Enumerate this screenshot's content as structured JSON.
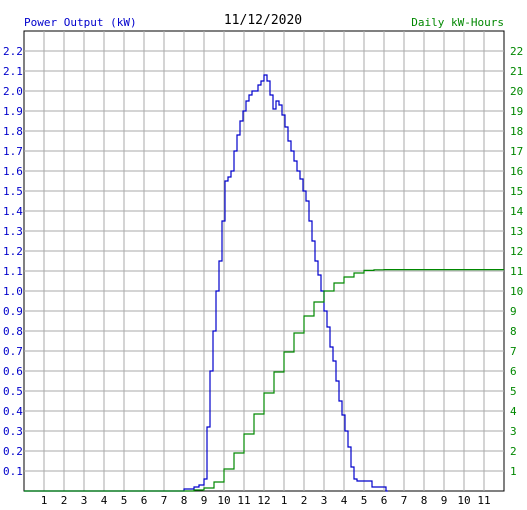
{
  "chart_data": {
    "type": "line",
    "title": "11/12/2020",
    "ylabel_left": "Power Output (kW)",
    "ylabel_right": "Daily kW-Hours",
    "grid": true,
    "x_ticks": [
      "1",
      "2",
      "3",
      "4",
      "5",
      "6",
      "7",
      "8",
      "9",
      "10",
      "11",
      "12",
      "1",
      "2",
      "3",
      "4",
      "5",
      "6",
      "7",
      "8",
      "9",
      "10",
      "11"
    ],
    "xlim_hours": [
      0,
      24
    ],
    "ylim_left": [
      0,
      2.3
    ],
    "ylim_right": [
      0,
      23
    ],
    "y_ticks_left": [
      "0.1",
      "0.2",
      "0.3",
      "0.4",
      "0.5",
      "0.6",
      "0.7",
      "0.8",
      "0.9",
      "1.0",
      "1.1",
      "1.2",
      "1.3",
      "1.4",
      "1.5",
      "1.6",
      "1.7",
      "1.8",
      "1.9",
      "2.0",
      "2.1",
      "2.2"
    ],
    "y_ticks_right": [
      "1",
      "2",
      "3",
      "4",
      "5",
      "6",
      "7",
      "8",
      "9",
      "10",
      "11",
      "12",
      "13",
      "14",
      "15",
      "16",
      "17",
      "18",
      "19",
      "20",
      "21",
      "22"
    ],
    "colors": {
      "power": "#0000cc",
      "energy": "#008800",
      "left_axis": "#0000cc",
      "right_axis": "#008800",
      "title": "#000000",
      "grid": "#aaaaaa"
    },
    "series": [
      {
        "name": "Power Output (kW)",
        "axis": "left",
        "x": [
          0,
          7.9,
          8.0,
          8.5,
          8.75,
          9.0,
          9.15,
          9.3,
          9.45,
          9.6,
          9.75,
          9.9,
          10.05,
          10.2,
          10.35,
          10.5,
          10.65,
          10.8,
          10.95,
          11.1,
          11.25,
          11.4,
          11.55,
          11.7,
          11.85,
          12.0,
          12.15,
          12.3,
          12.45,
          12.6,
          12.75,
          12.9,
          13.05,
          13.2,
          13.35,
          13.5,
          13.65,
          13.8,
          13.95,
          14.1,
          14.25,
          14.4,
          14.55,
          14.7,
          14.85,
          15.0,
          15.15,
          15.3,
          15.45,
          15.6,
          15.75,
          15.9,
          16.05,
          16.2,
          16.35,
          16.5,
          16.65,
          16.8,
          16.95,
          17.1,
          17.25,
          17.4,
          18.1,
          18.2
        ],
        "y": [
          0,
          0,
          0.01,
          0.02,
          0.03,
          0.06,
          0.32,
          0.6,
          0.8,
          1.0,
          1.15,
          1.35,
          1.55,
          1.57,
          1.6,
          1.7,
          1.78,
          1.85,
          1.9,
          1.95,
          1.98,
          2.0,
          2.0,
          2.03,
          2.05,
          2.08,
          2.05,
          1.98,
          1.91,
          1.95,
          1.93,
          1.88,
          1.82,
          1.75,
          1.7,
          1.65,
          1.6,
          1.56,
          1.5,
          1.45,
          1.35,
          1.25,
          1.15,
          1.08,
          1.0,
          0.9,
          0.82,
          0.72,
          0.65,
          0.55,
          0.45,
          0.38,
          0.3,
          0.22,
          0.12,
          0.06,
          0.05,
          0.05,
          0.05,
          0.05,
          0.05,
          0.02,
          0.0,
          0.0
        ]
      },
      {
        "name": "Daily kW-Hours",
        "axis": "right",
        "x": [
          0,
          7.9,
          8.5,
          9.0,
          9.5,
          10.0,
          10.5,
          11.0,
          11.5,
          12.0,
          12.5,
          13.0,
          13.5,
          14.0,
          14.5,
          15.0,
          15.5,
          16.0,
          16.5,
          17.0,
          17.5,
          18.0,
          24.0
        ],
        "y": [
          0,
          0,
          0.05,
          0.15,
          0.45,
          1.1,
          1.9,
          2.85,
          3.85,
          4.9,
          5.95,
          6.95,
          7.9,
          8.75,
          9.45,
          10.0,
          10.4,
          10.7,
          10.9,
          11.03,
          11.06,
          11.07,
          11.07
        ]
      }
    ]
  }
}
